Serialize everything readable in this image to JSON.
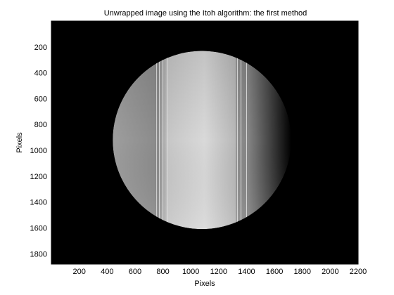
{
  "chart_data": {
    "type": "heatmap",
    "title": "Unwrapped image using the Itoh algorithm: the first method",
    "xlabel": "Pixels",
    "ylabel": "Pixels",
    "xlim": [
      0,
      2200
    ],
    "ylim": [
      0,
      1880
    ],
    "y_reversed": true,
    "grid": false,
    "colormap": "gray",
    "background_color": "#000000",
    "xticks": [
      200,
      400,
      600,
      800,
      1000,
      1200,
      1400,
      1600,
      1800,
      2000,
      2200
    ],
    "yticks": [
      200,
      400,
      600,
      800,
      1000,
      1200,
      1400,
      1600,
      1800
    ],
    "xtick_labels": [
      "200",
      "400",
      "600",
      "800",
      "1000",
      "1200",
      "1400",
      "1600",
      "1800",
      "2000",
      "2200"
    ],
    "ytick_labels": [
      "200",
      "400",
      "600",
      "800",
      "1000",
      "1200",
      "1400",
      "1600",
      "1800"
    ],
    "disk": {
      "center_x": 1080,
      "center_y": 920,
      "radius": 640
    },
    "vertical_bands": [
      {
        "x_start": 745,
        "x_end": 835,
        "edge_lines": [
          755,
          775,
          800,
          830
        ]
      },
      {
        "x_start": 1325,
        "x_end": 1405,
        "edge_lines": [
          1335,
          1360,
          1400
        ]
      }
    ],
    "intensity_profile": [
      {
        "x": 440,
        "level": 0.62
      },
      {
        "x": 740,
        "level": 0.55
      },
      {
        "x": 760,
        "level": 0.52
      },
      {
        "x": 840,
        "level": 0.78
      },
      {
        "x": 1100,
        "level": 0.85
      },
      {
        "x": 1320,
        "level": 0.72
      },
      {
        "x": 1330,
        "level": 0.55
      },
      {
        "x": 1410,
        "level": 0.52
      },
      {
        "x": 1560,
        "level": 0.28
      },
      {
        "x": 1720,
        "level": 0.0
      }
    ]
  }
}
